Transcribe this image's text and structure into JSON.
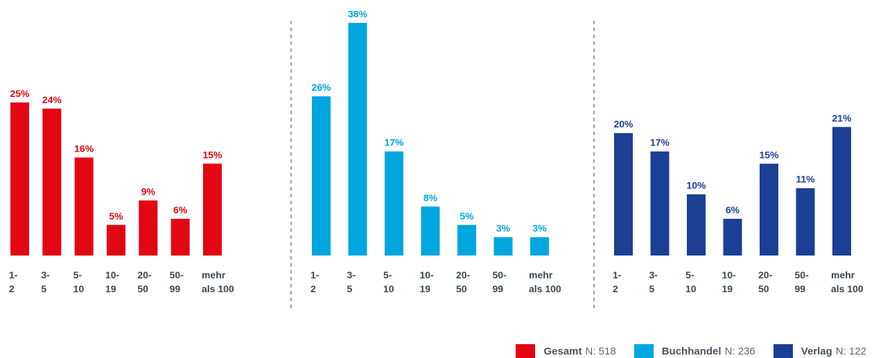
{
  "chart_data": {
    "type": "bar",
    "ylim": [
      0,
      38
    ],
    "panels": [
      {
        "name": "Gesamt",
        "n_label": "N: 518",
        "color": "#e30613",
        "categories": [
          [
            "1-",
            "2"
          ],
          [
            "3-",
            "5"
          ],
          [
            "5-",
            "10"
          ],
          [
            "10-",
            "19"
          ],
          [
            "20-",
            "50"
          ],
          [
            "50-",
            "99"
          ],
          [
            "mehr",
            "als 100"
          ]
        ],
        "values": [
          25,
          24,
          16,
          5,
          9,
          6,
          15
        ],
        "value_labels": [
          "25%",
          "24%",
          "16%",
          "5%",
          "9%",
          "6%",
          "15%"
        ]
      },
      {
        "name": "Buchhandel",
        "n_label": "N: 236",
        "color": "#00a6de",
        "categories": [
          [
            "1-",
            "2"
          ],
          [
            "3-",
            "5"
          ],
          [
            "5-",
            "10"
          ],
          [
            "10-",
            "19"
          ],
          [
            "20-",
            "50"
          ],
          [
            "50-",
            "99"
          ],
          [
            "mehr",
            "als 100"
          ]
        ],
        "values": [
          26,
          38,
          17,
          8,
          5,
          3,
          3
        ],
        "value_labels": [
          "26%",
          "38%",
          "17%",
          "8%",
          "5%",
          "3%",
          "3%"
        ]
      },
      {
        "name": "Verlag",
        "n_label": "N: 122",
        "color": "#1b3f94",
        "categories": [
          [
            "1-",
            "2"
          ],
          [
            "3-",
            "5"
          ],
          [
            "5-",
            "10"
          ],
          [
            "10-",
            "19"
          ],
          [
            "20-",
            "50"
          ],
          [
            "50-",
            "99"
          ],
          [
            "mehr",
            "als 100"
          ]
        ],
        "values": [
          20,
          17,
          10,
          6,
          15,
          11,
          21
        ],
        "value_labels": [
          "20%",
          "17%",
          "10%",
          "6%",
          "15%",
          "11%",
          "21%"
        ]
      }
    ],
    "separator_style": "dashed",
    "legend_placement": "bottom-right"
  }
}
